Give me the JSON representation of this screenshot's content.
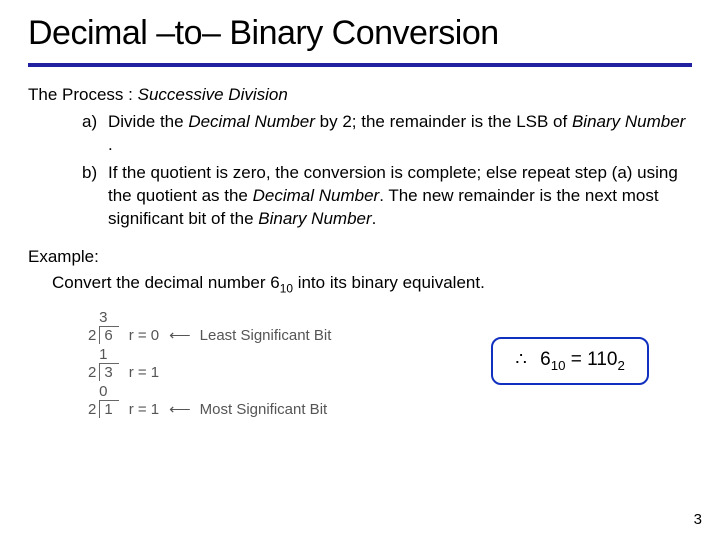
{
  "title": "Decimal –to– Binary Conversion",
  "process": {
    "label_prefix": "The  Process : ",
    "label_italic": "Successive Division",
    "items": [
      {
        "marker": "a)",
        "html_parts": [
          "Divide the ",
          "Decimal Number",
          " by 2; the remainder is the LSB of ",
          "Binary Number",
          " ."
        ]
      },
      {
        "marker": "b)",
        "html_parts": [
          "If the quotient is zero, the conversion is complete; else repeat step (a) using the quotient as the ",
          "Decimal Number",
          ".  The new remainder is the next most significant bit of the ",
          "Binary Number",
          "."
        ]
      }
    ]
  },
  "example": {
    "head": "Example:",
    "body_prefix": "Convert the decimal number 6",
    "body_sub": "10",
    "body_suffix": " into its binary equivalent."
  },
  "divisions": [
    {
      "quotient": "3",
      "divisor": "2",
      "dividend": "6",
      "r": "r = 0",
      "sig": "Least Significant Bit"
    },
    {
      "quotient": "1",
      "divisor": "2",
      "dividend": "3",
      "r": "r = 1",
      "sig": ""
    },
    {
      "quotient": "0",
      "divisor": "2",
      "dividend": "1",
      "r": "r = 1",
      "sig": "Most Significant Bit"
    }
  ],
  "result": {
    "therefore": "∴",
    "lhs": "6",
    "lhs_sub": "10",
    "eq": " = ",
    "rhs": "110",
    "rhs_sub": "2"
  },
  "arrow_glyph": "⟵",
  "page_number": "3",
  "colors": {
    "rule": "#2020a0",
    "box_border": "#1030c0"
  }
}
